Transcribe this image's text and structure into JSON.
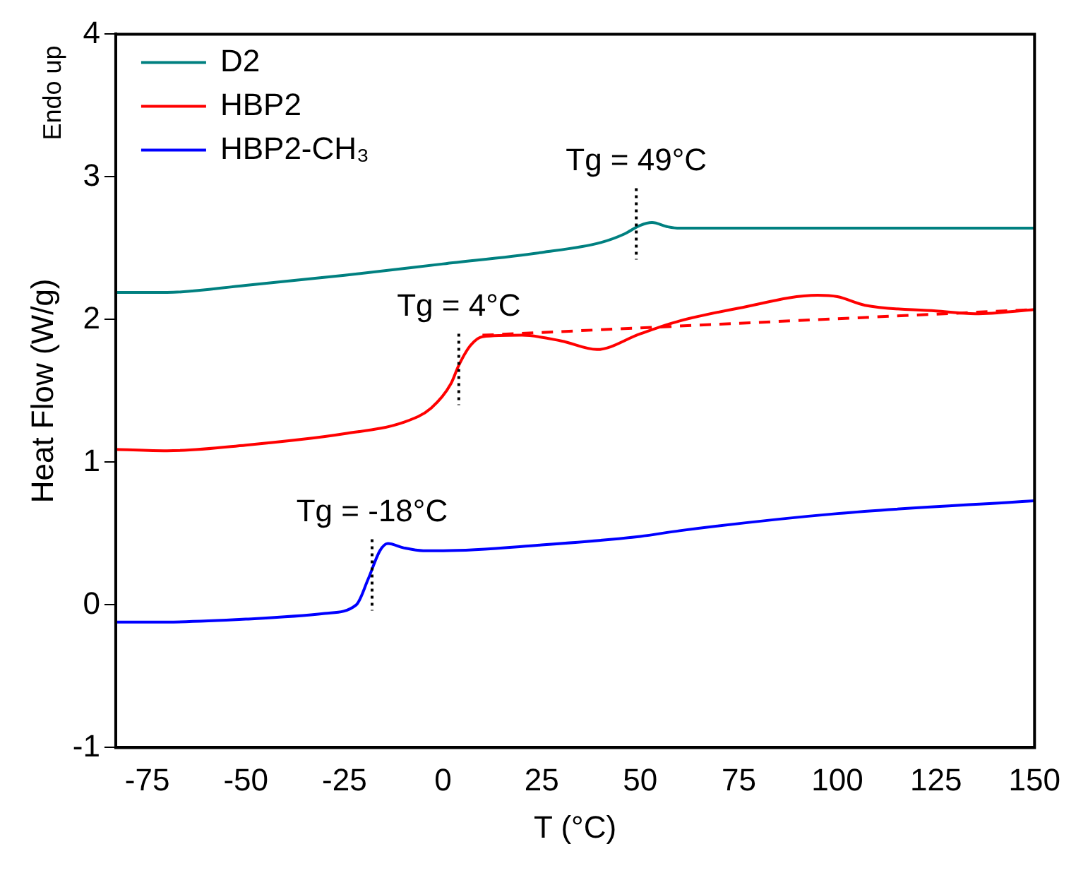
{
  "chart_data": {
    "type": "line",
    "xlabel": "T (°C)",
    "ylabel": "Heat Flow (W/g)",
    "xlim": [
      -83,
      150
    ],
    "xticks": [
      -75,
      -50,
      -25,
      0,
      25,
      50,
      75,
      100,
      125,
      150
    ],
    "ylim": [
      -1,
      4
    ],
    "yticks": [
      -1,
      0,
      1,
      2,
      3,
      4
    ],
    "grid": false,
    "legend": "top left",
    "marker": "none",
    "series": [
      {
        "name": "D2",
        "color": "#008080",
        "x": [
          -83,
          -70,
          -50,
          -25,
          0,
          25,
          40,
          46,
          50,
          53,
          57,
          60,
          100,
          150
        ],
        "values": [
          2.19,
          2.19,
          2.24,
          2.31,
          2.39,
          2.47,
          2.54,
          2.6,
          2.66,
          2.68,
          2.65,
          2.64,
          2.64,
          2.64
        ]
      },
      {
        "name": "HBP2",
        "color": "#ff0000",
        "x": [
          -83,
          -70,
          -50,
          -25,
          -10,
          -3,
          2,
          4,
          7,
          10,
          20,
          30,
          39,
          50,
          60,
          75,
          95,
          100,
          107,
          125,
          135,
          150
        ],
        "values": [
          1.09,
          1.08,
          1.12,
          1.2,
          1.28,
          1.38,
          1.55,
          1.68,
          1.82,
          1.88,
          1.89,
          1.85,
          1.79,
          1.9,
          1.99,
          2.08,
          2.17,
          2.16,
          2.1,
          2.06,
          2.04,
          2.07
        ]
      },
      {
        "name": "HBP2-CH₃",
        "color": "#0000ff",
        "x": [
          -83,
          -70,
          -50,
          -30,
          -22,
          -19,
          -16,
          -14,
          -10,
          -5,
          0,
          25,
          50,
          60,
          100,
          150
        ],
        "values": [
          -0.12,
          -0.12,
          -0.1,
          -0.06,
          0.0,
          0.18,
          0.38,
          0.43,
          0.4,
          0.38,
          0.38,
          0.42,
          0.48,
          0.52,
          0.64,
          0.73
        ]
      },
      {
        "color": "#ff0000",
        "line_style": "dashed",
        "x": [
          10,
          150
        ],
        "values": [
          1.89,
          2.07
        ]
      }
    ],
    "annotations": [
      "Endo up",
      {
        "text": "Tg = 49°C",
        "x": 49,
        "y": 2.67
      },
      {
        "text": "Tg = 4°C",
        "x": 4,
        "y": 1.65
      },
      {
        "text": "Tg = -18°C",
        "x": -18,
        "y": 0.21
      }
    ]
  }
}
